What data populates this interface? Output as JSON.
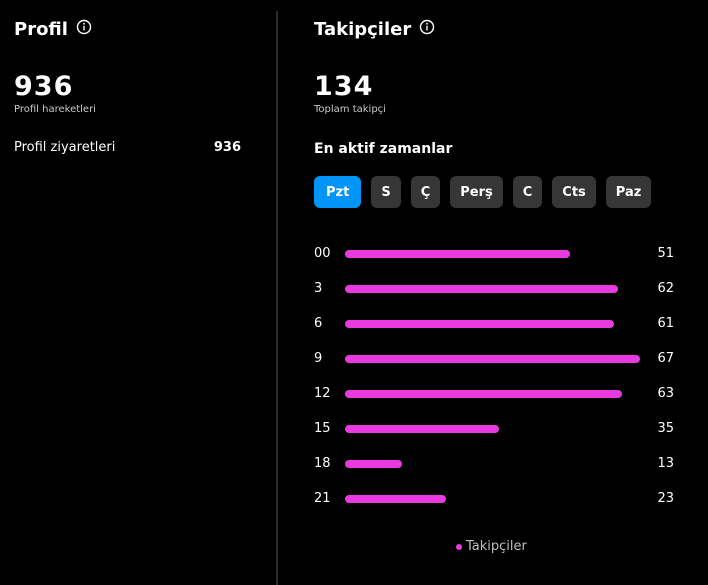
{
  "profile": {
    "title": "Profil",
    "total": "936",
    "total_label": "Profil hareketleri",
    "stats": [
      {
        "label": "Profil ziyaretleri",
        "value": "936"
      }
    ]
  },
  "followers": {
    "title": "Takipçiler",
    "total": "134",
    "total_label": "Toplam takipçi",
    "active_title": "En aktif zamanlar",
    "days": [
      "Pzt",
      "S",
      "Ç",
      "Perş",
      "C",
      "Cts",
      "Paz"
    ],
    "selected_day": "Pzt"
  },
  "colors": {
    "accent": "#0095f6",
    "bar": "#e83adf",
    "tab_bg": "#363636"
  },
  "chart_data": {
    "type": "bar",
    "orientation": "horizontal",
    "categories": [
      "00",
      "3",
      "6",
      "9",
      "12",
      "15",
      "18",
      "21"
    ],
    "series": [
      {
        "name": "Takipçiler",
        "values": [
          51,
          62,
          61,
          67,
          63,
          35,
          13,
          23
        ]
      }
    ],
    "xlim": [
      0,
      67
    ],
    "legend": "bottom",
    "grid": false
  }
}
